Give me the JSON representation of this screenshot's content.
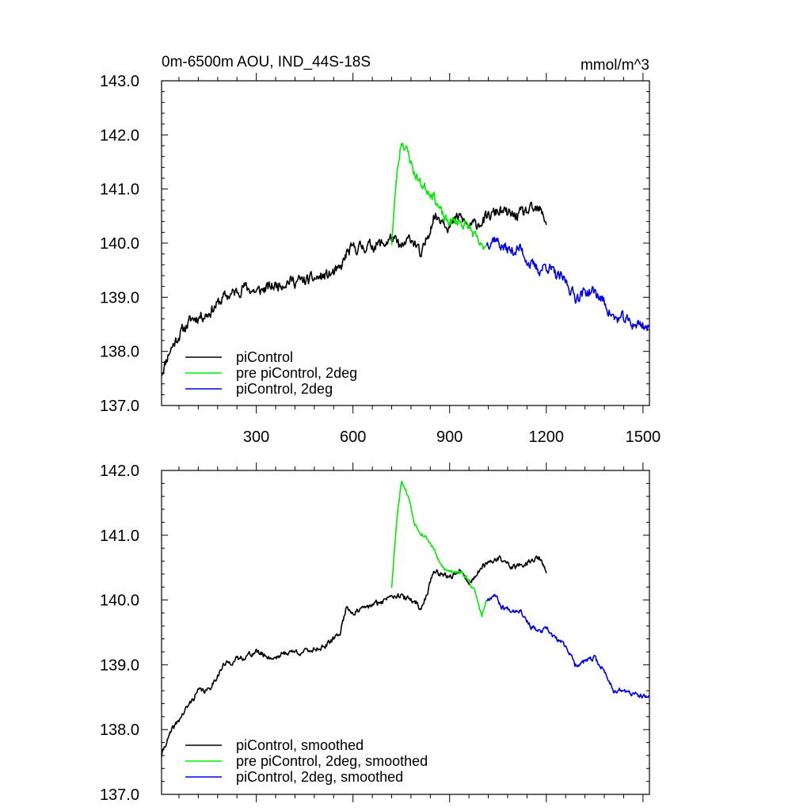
{
  "chart_data": [
    {
      "type": "line",
      "title_left": "0m-6500m AOU, IND_44S-18S",
      "title_right": "mmol/m^3",
      "xlim": [
        6,
        1520
      ],
      "ylim": [
        137.0,
        143.0
      ],
      "xticks": [
        300,
        600,
        900,
        1200,
        1500
      ],
      "xtick_labels": [
        "300",
        "600",
        "900",
        "1200",
        "1500"
      ],
      "yticks": [
        137.0,
        138.0,
        139.0,
        140.0,
        141.0,
        142.0,
        143.0
      ],
      "ytick_labels": [
        "137.0",
        "138.0",
        "139.0",
        "140.0",
        "141.0",
        "142.0",
        "143.0"
      ],
      "legend_position": "bottom-left",
      "legend": [
        {
          "label": "piControl",
          "color": "#000000"
        },
        {
          "label": "pre piControl, 2deg",
          "color": "#00ee00"
        },
        {
          "label": "piControl, 2deg",
          "color": "#0000ee"
        }
      ],
      "series": [
        {
          "name": "piControl",
          "color": "#000000",
          "x": [
            6,
            30,
            60,
            100,
            150,
            200,
            240,
            260,
            300,
            350,
            400,
            450,
            520,
            560,
            580,
            600,
            650,
            700,
            720,
            750,
            780,
            800,
            810,
            830,
            850,
            880,
            900,
            930,
            960,
            1000,
            1050,
            1100,
            1150,
            1180,
            1200
          ],
          "y": [
            137.6,
            138.0,
            138.3,
            138.6,
            138.7,
            139.0,
            139.1,
            139.2,
            139.1,
            139.2,
            139.3,
            139.3,
            139.4,
            139.5,
            139.8,
            139.9,
            139.95,
            140.0,
            140.1,
            139.9,
            140.1,
            139.95,
            139.7,
            140.1,
            140.5,
            140.45,
            140.3,
            140.5,
            140.3,
            140.4,
            140.6,
            140.5,
            140.6,
            140.6,
            140.4
          ],
          "noise": 0.22,
          "seed": 11
        },
        {
          "name": "pre piControl, 2deg",
          "color": "#00ee00",
          "x": [
            720,
            735,
            750,
            760,
            775,
            790,
            810,
            830,
            850,
            870,
            890,
            910,
            930,
            960,
            980,
            1000,
            1015
          ],
          "y": [
            140.0,
            141.2,
            141.9,
            141.8,
            141.6,
            141.3,
            141.1,
            141.0,
            140.9,
            140.6,
            140.4,
            140.4,
            140.4,
            140.3,
            140.1,
            139.9,
            140.0
          ],
          "noise": 0.2,
          "seed": 23
        },
        {
          "name": "piControl, 2deg",
          "color": "#0000ee",
          "x": [
            1015,
            1040,
            1060,
            1090,
            1120,
            1150,
            1180,
            1200,
            1230,
            1260,
            1290,
            1320,
            1350,
            1380,
            1410,
            1440,
            1470,
            1500,
            1520
          ],
          "y": [
            140.0,
            140.1,
            139.95,
            139.85,
            139.9,
            139.6,
            139.5,
            139.6,
            139.4,
            139.3,
            139.0,
            139.1,
            139.1,
            138.9,
            138.6,
            138.6,
            138.5,
            138.5,
            138.4
          ],
          "noise": 0.22,
          "seed": 37
        }
      ]
    },
    {
      "type": "line",
      "xlim": [
        6,
        1520
      ],
      "ylim": [
        137.0,
        142.0
      ],
      "xticks": [
        300,
        600,
        900,
        1200,
        1500
      ],
      "yticks": [
        137.0,
        138.0,
        139.0,
        140.0,
        141.0,
        142.0
      ],
      "ytick_labels": [
        "137.0",
        "138.0",
        "139.0",
        "140.0",
        "141.0",
        "142.0"
      ],
      "legend_position": "bottom-left",
      "legend": [
        {
          "label": "piControl, smoothed",
          "color": "#000000"
        },
        {
          "label": "pre piControl, 2deg, smoothed",
          "color": "#00ee00"
        },
        {
          "label": "piControl, 2deg, smoothed",
          "color": "#0000ee"
        }
      ],
      "series": [
        {
          "name": "piControl, smoothed",
          "color": "#000000",
          "x": [
            6,
            20,
            40,
            80,
            120,
            150,
            200,
            250,
            300,
            350,
            400,
            450,
            520,
            560,
            580,
            600,
            650,
            700,
            720,
            750,
            780,
            800,
            810,
            830,
            850,
            880,
            900,
            930,
            960,
            1000,
            1050,
            1100,
            1150,
            1180,
            1200
          ],
          "y": [
            137.6,
            137.8,
            138.0,
            138.3,
            138.6,
            138.6,
            139.0,
            139.1,
            139.2,
            139.1,
            139.2,
            139.2,
            139.3,
            139.5,
            139.9,
            139.8,
            139.9,
            140.0,
            140.1,
            140.05,
            140.0,
            139.95,
            139.85,
            140.1,
            140.45,
            140.4,
            140.35,
            140.45,
            140.25,
            140.5,
            140.65,
            140.5,
            140.6,
            140.65,
            140.4
          ],
          "noise": 0.09,
          "seed": 41
        },
        {
          "name": "pre piControl, 2deg, smoothed",
          "color": "#00ee00",
          "x": [
            720,
            735,
            750,
            760,
            775,
            790,
            810,
            830,
            850,
            870,
            890,
            910,
            930,
            960,
            980,
            1000,
            1015
          ],
          "y": [
            140.2,
            141.2,
            141.85,
            141.75,
            141.55,
            141.2,
            141.05,
            140.95,
            140.8,
            140.55,
            140.45,
            140.45,
            140.45,
            140.3,
            140.1,
            139.75,
            140.0
          ],
          "noise": 0.07,
          "seed": 53
        },
        {
          "name": "piControl, 2deg, smoothed",
          "color": "#0000ee",
          "x": [
            1015,
            1040,
            1060,
            1090,
            1120,
            1150,
            1180,
            1200,
            1230,
            1260,
            1290,
            1320,
            1350,
            1380,
            1410,
            1440,
            1470,
            1500,
            1520
          ],
          "y": [
            140.0,
            140.1,
            139.9,
            139.85,
            139.85,
            139.6,
            139.5,
            139.55,
            139.4,
            139.3,
            139.0,
            139.05,
            139.1,
            138.9,
            138.6,
            138.6,
            138.55,
            138.5,
            138.5
          ],
          "noise": 0.08,
          "seed": 67
        }
      ]
    }
  ]
}
